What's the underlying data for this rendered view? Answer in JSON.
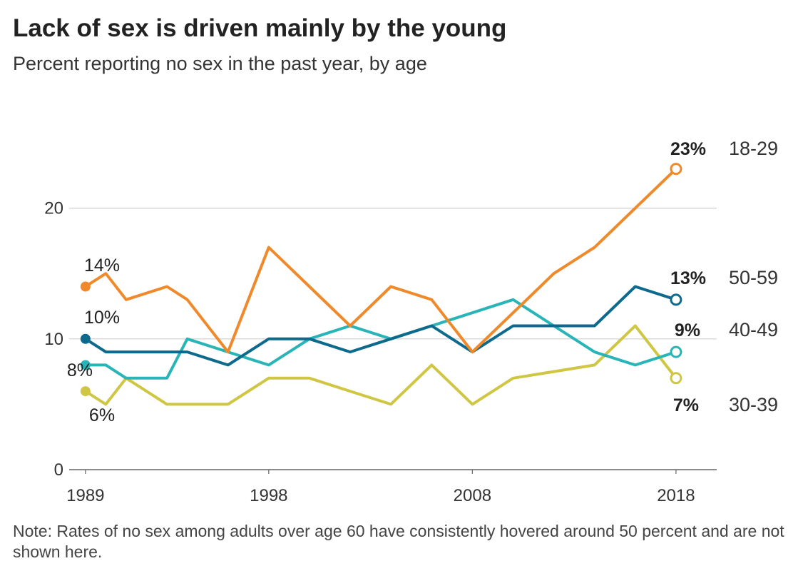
{
  "title": "Lack of sex is driven mainly by the young",
  "subtitle": "Percent reporting no sex in the past year, by age",
  "note": "Note: Rates of no sex among adults over age 60 have consistently hovered around 50 percent and are not shown here.",
  "chart_data": {
    "type": "line",
    "x": [
      1989,
      1990,
      1991,
      1993,
      1994,
      1996,
      1998,
      2000,
      2002,
      2004,
      2006,
      2008,
      2010,
      2012,
      2014,
      2016,
      2018
    ],
    "xticks": [
      "1989",
      "1998",
      "2008",
      "2018"
    ],
    "yticks": [
      "0",
      "10",
      "20"
    ],
    "ylim": [
      0,
      25
    ],
    "xlim": [
      1988.2,
      2020
    ],
    "grid": true,
    "series": [
      {
        "name": "18-29",
        "color": "#f0892a",
        "values": [
          14,
          15,
          13,
          14,
          13,
          9,
          17,
          14,
          11,
          14,
          13,
          9,
          12,
          15,
          17,
          20,
          23
        ],
        "first_label": "14%",
        "last_label": "23%",
        "last_bold": true
      },
      {
        "name": "50-59",
        "color": "#0e6a8c",
        "values": [
          10,
          9,
          9,
          9,
          9,
          8,
          10,
          10,
          9,
          10,
          11,
          9,
          11,
          11,
          11,
          14,
          13
        ],
        "first_label": "10%",
        "last_label": "13%",
        "last_bold": true
      },
      {
        "name": "40-49",
        "color": "#29b5b8",
        "values": [
          8,
          8,
          7,
          7,
          10,
          9,
          8,
          10,
          11,
          10,
          11,
          12,
          13,
          11,
          9,
          8,
          9
        ],
        "first_label": "8%",
        "last_label": "9%",
        "last_bold": true
      },
      {
        "name": "30-39",
        "color": "#cfc743",
        "values": [
          6,
          5,
          7,
          5,
          5,
          5,
          7,
          7,
          6,
          5,
          8,
          5,
          7,
          7.5,
          8,
          11,
          7
        ],
        "first_label": "6%",
        "last_label": "7%",
        "last_bold": true
      }
    ]
  }
}
